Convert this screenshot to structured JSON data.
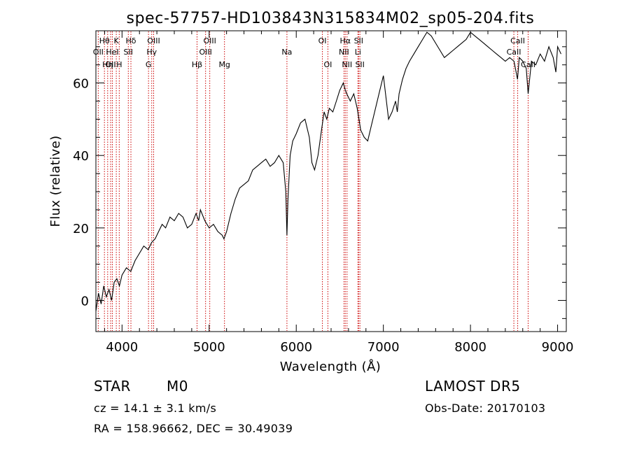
{
  "chart_data": {
    "type": "line",
    "title": "spec-57757-HD103843N315834M02_sp05-204.fits",
    "xlabel": "Wavelength (Å)",
    "ylabel": "Flux (relative)",
    "xlim": [
      3700,
      9100
    ],
    "ylim": [
      -8.6,
      74.4
    ],
    "x_ticks": [
      4000,
      5000,
      6000,
      7000,
      8000,
      9000
    ],
    "y_ticks": [
      0,
      20,
      40,
      60
    ],
    "grid": false,
    "series": [
      {
        "x": [
          3700,
          3730,
          3760,
          3790,
          3820,
          3850,
          3880,
          3910,
          3940,
          3970,
          4000,
          4050,
          4100,
          4150,
          4200,
          4250,
          4300,
          4340,
          4380,
          4420,
          4460,
          4500,
          4550,
          4600,
          4650,
          4700,
          4750,
          4800,
          4850,
          4880,
          4900,
          4950,
          5000,
          5050,
          5100,
          5150,
          5170,
          5200,
          5250,
          5300,
          5350,
          5400,
          5450,
          5500,
          5550,
          5600,
          5650,
          5700,
          5750,
          5800,
          5850,
          5880,
          5893,
          5905,
          5930,
          5960,
          6000,
          6050,
          6100,
          6150,
          6180,
          6210,
          6250,
          6290,
          6320,
          6350,
          6380,
          6420,
          6460,
          6500,
          6540,
          6563,
          6580,
          6620,
          6660,
          6700,
          6740,
          6780,
          6820,
          6860,
          6900,
          6950,
          7000,
          7030,
          7060,
          7100,
          7140,
          7160,
          7180,
          7220,
          7260,
          7300,
          7350,
          7400,
          7450,
          7500,
          7550,
          7600,
          7650,
          7700,
          7750,
          7800,
          7850,
          7900,
          7950,
          8000,
          8050,
          8100,
          8150,
          8200,
          8250,
          8300,
          8350,
          8400,
          8450,
          8500,
          8540,
          8560,
          8600,
          8640,
          8662,
          8700,
          8750,
          8800,
          8850,
          8900,
          8950,
          8980,
          9000,
          9040
        ],
        "y": [
          -3,
          2,
          -1,
          4,
          1,
          3,
          0,
          5,
          6,
          4,
          7,
          9,
          8,
          11,
          13,
          15,
          14,
          16,
          17,
          19,
          21,
          20,
          23,
          22,
          24,
          23,
          20,
          21,
          24,
          22,
          25,
          22,
          20,
          21,
          19,
          18,
          17,
          19,
          24,
          28,
          31,
          32,
          33,
          36,
          37,
          38,
          39,
          37,
          38,
          40,
          38,
          30,
          18,
          28,
          40,
          44,
          46,
          49,
          50,
          45,
          38,
          36,
          40,
          47,
          52,
          50,
          53,
          52,
          55,
          58,
          60,
          58,
          57,
          55,
          57,
          53,
          47,
          45,
          44,
          48,
          52,
          57,
          62,
          56,
          50,
          52,
          55,
          52,
          57,
          61,
          64,
          66,
          68,
          70,
          72,
          74,
          73,
          71,
          69,
          67,
          68,
          69,
          70,
          71,
          72,
          74,
          73,
          72,
          71,
          70,
          69,
          68,
          67,
          66,
          67,
          66,
          61,
          67,
          66,
          64,
          57,
          66,
          65,
          68,
          66,
          70,
          67,
          63,
          70,
          68
        ]
      }
    ],
    "line_labels": [
      {
        "x": 3727,
        "label": "OII",
        "row": 2
      },
      {
        "x": 3798,
        "label": "Hθ",
        "row": 1
      },
      {
        "x": 3835,
        "label": "Hη",
        "row": 3
      },
      {
        "x": 3869,
        "label": "OII",
        "row": 3
      },
      {
        "x": 3889,
        "label": "HeI",
        "row": 2
      },
      {
        "x": 3934,
        "label": "K",
        "row": 1
      },
      {
        "x": 3968,
        "label": "H",
        "row": 3
      },
      {
        "x": 4072,
        "label": "SII",
        "row": 2
      },
      {
        "x": 4102,
        "label": "Hδ",
        "row": 1
      },
      {
        "x": 4304,
        "label": "G",
        "row": 3
      },
      {
        "x": 4341,
        "label": "Hγ",
        "row": 2
      },
      {
        "x": 4363,
        "label": "OIII",
        "row": 1
      },
      {
        "x": 4861,
        "label": "Hβ",
        "row": 3
      },
      {
        "x": 4959,
        "label": "OIII",
        "row": 2
      },
      {
        "x": 5007,
        "label": "OIII",
        "row": 1
      },
      {
        "x": 5176,
        "label": "Mg",
        "row": 3
      },
      {
        "x": 5893,
        "label": "Na",
        "row": 2
      },
      {
        "x": 6300,
        "label": "OI",
        "row": 1
      },
      {
        "x": 6363,
        "label": "OI",
        "row": 3
      },
      {
        "x": 6548,
        "label": "NII",
        "row": 2
      },
      {
        "x": 6563,
        "label": "Hα",
        "row": 1
      },
      {
        "x": 6583,
        "label": "NII",
        "row": 3
      },
      {
        "x": 6708,
        "label": "Li",
        "row": 2
      },
      {
        "x": 6716,
        "label": "SII",
        "row": 1
      },
      {
        "x": 6731,
        "label": "SII",
        "row": 3
      },
      {
        "x": 8498,
        "label": "CaII",
        "row": 2
      },
      {
        "x": 8542,
        "label": "CaII",
        "row": 1
      },
      {
        "x": 8662,
        "label": "CaII",
        "row": 3
      }
    ]
  },
  "info": {
    "class": "STAR",
    "subclass": "M0",
    "survey": "LAMOST DR5",
    "cz": "cz = 14.1 ± 3.1 km/s",
    "obs_date": "Obs-Date: 20170103",
    "coords": "RA = 158.96662, DEC =  30.49039"
  },
  "colors": {
    "line_marker": "#cc0000",
    "spectrum": "#000000",
    "axes": "#000000"
  }
}
